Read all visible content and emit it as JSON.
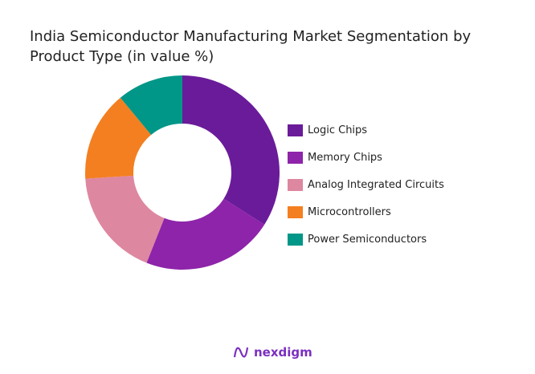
{
  "title": "India Semiconductor Manufacturing Market Segmentation by Product Type (in value %)",
  "chart_data": {
    "type": "pie",
    "donut": true,
    "title": "India Semiconductor Manufacturing Market Segmentation by Product Type (in value %)",
    "categories": [
      "Logic Chips",
      "Memory Chips",
      "Analog Integrated Circuits",
      "Microcontrollers",
      "Power Semiconductors"
    ],
    "values": [
      34,
      22,
      18,
      15,
      11
    ],
    "colors": [
      "#6a1b9a",
      "#8e24aa",
      "#de87a0",
      "#f47f20",
      "#009688"
    ],
    "legend_position": "right"
  },
  "legend": [
    {
      "label": "Logic Chips",
      "color": "#6a1b9a"
    },
    {
      "label": "Memory Chips",
      "color": "#8e24aa"
    },
    {
      "label": "Analog Integrated Circuits",
      "color": "#de87a0"
    },
    {
      "label": "Microcontrollers",
      "color": "#f47f20"
    },
    {
      "label": "Power Semiconductors",
      "color": "#009688"
    }
  ],
  "logo": {
    "text": "nexdigm"
  }
}
